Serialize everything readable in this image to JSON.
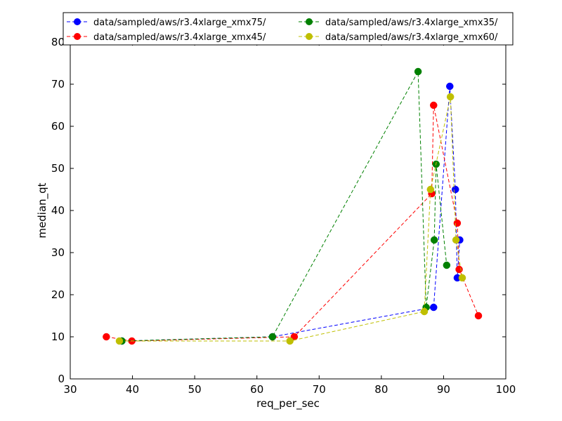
{
  "chart_data": {
    "type": "line",
    "title": "",
    "xlabel": "req_per_sec",
    "ylabel": "median_qt",
    "xlim": [
      30,
      100
    ],
    "ylim": [
      0,
      80
    ],
    "xticks": [
      30,
      40,
      50,
      60,
      70,
      80,
      90,
      100
    ],
    "yticks": [
      0,
      10,
      20,
      30,
      40,
      50,
      60,
      70,
      80
    ],
    "grid": false,
    "legend_position": "top",
    "legend_columns": 2,
    "line_style": "dashed",
    "marker": "circle",
    "series": [
      {
        "name": "data/sampled/aws/r3.4xlarge_xmx75/",
        "color": "#0000ff",
        "points": [
          [
            38.3,
            9
          ],
          [
            62.5,
            10
          ],
          [
            88.4,
            17
          ],
          [
            91.0,
            69.5
          ],
          [
            91.9,
            45
          ],
          [
            92.2,
            24
          ],
          [
            92.6,
            33
          ]
        ]
      },
      {
        "name": "data/sampled/aws/r3.4xlarge_xmx45/",
        "color": "#ff0000",
        "points": [
          [
            35.8,
            10
          ],
          [
            39.9,
            9
          ],
          [
            66.0,
            10
          ],
          [
            88.1,
            44
          ],
          [
            88.4,
            65
          ],
          [
            92.2,
            37
          ],
          [
            92.5,
            26
          ],
          [
            95.6,
            15
          ]
        ]
      },
      {
        "name": "data/sampled/aws/r3.4xlarge_xmx35/",
        "color": "#008000",
        "points": [
          [
            38.3,
            9
          ],
          [
            62.5,
            10
          ],
          [
            85.9,
            73
          ],
          [
            87.2,
            17
          ],
          [
            88.5,
            33
          ],
          [
            88.8,
            51
          ],
          [
            90.5,
            27
          ]
        ]
      },
      {
        "name": "data/sampled/aws/r3.4xlarge_xmx60/",
        "color": "#bfbf00",
        "points": [
          [
            37.9,
            9
          ],
          [
            65.3,
            9
          ],
          [
            86.9,
            16
          ],
          [
            87.9,
            45
          ],
          [
            91.1,
            67
          ],
          [
            92.0,
            33
          ],
          [
            93.0,
            24
          ]
        ]
      }
    ]
  }
}
